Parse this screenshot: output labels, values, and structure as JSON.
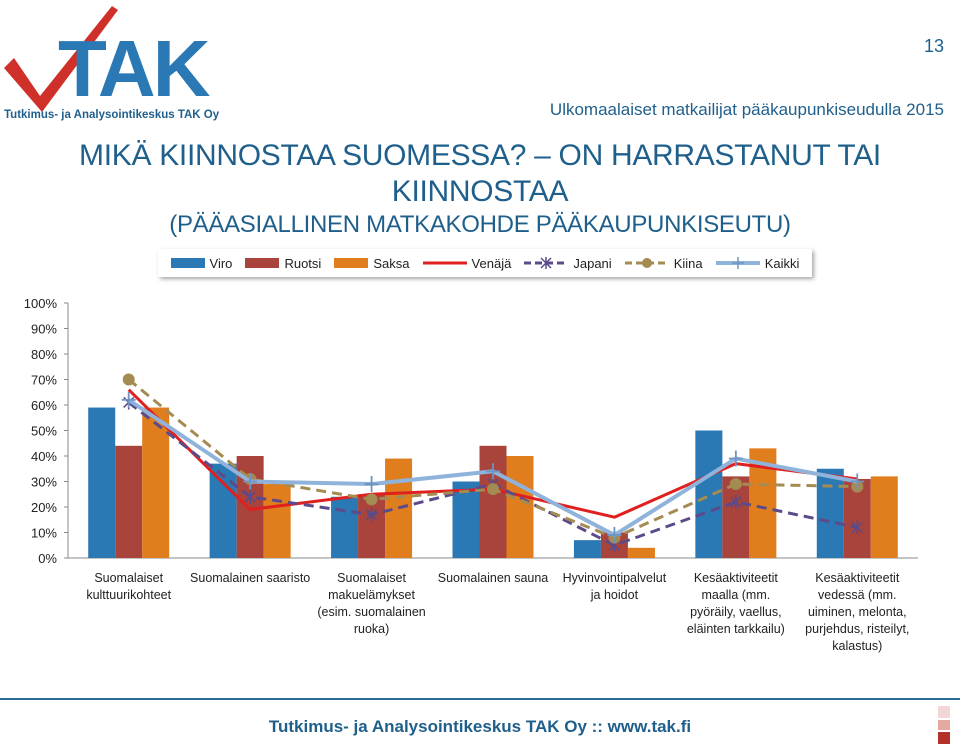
{
  "header": {
    "logo_text": "TAK",
    "logo_subtitle": "Tutkimus- ja Analysointikeskus TAK Oy",
    "page_number": "13",
    "caption": "Ulkomaalaiset matkailijat pääkaupunkiseudulla 2015"
  },
  "title": {
    "line1": "MIKÄ KIINNOSTAA SUOMESSA? – ON HARRASTANUT TAI KIINNOSTAA",
    "line2": "(PÄÄASIALLINEN MATKAKOHDE PÄÄKAUPUNKISEUTU)"
  },
  "footer": {
    "text": "Tutkimus- ja Analysointikeskus TAK Oy  ::  www.tak.fi"
  },
  "colors": {
    "brand": "#1f5f8b",
    "Viro": "#2a78b4",
    "Ruotsi": "#a8443b",
    "Saksa": "#e07d1d",
    "Venäjä": "#e0201e",
    "Japani": "#5b4b8a",
    "Kiina": "#a48b52",
    "Kaikki": "#8fb3da"
  },
  "chart_data": {
    "type": "bar",
    "categories": [
      [
        "Suomalaiset",
        "kulttuurikohteet"
      ],
      [
        "Suomalainen saaristo"
      ],
      [
        "Suomalaiset",
        "makuelämykset",
        "(esim. suomalainen",
        "ruoka)"
      ],
      [
        "Suomalainen sauna"
      ],
      [
        "Hyvinvointipalvelut",
        "ja hoidot"
      ],
      [
        "Kesäaktiviteetit",
        "maalla (mm.",
        "pyöräily, vaellus,",
        "eläinten tarkkailu)"
      ],
      [
        "Kesäaktiviteetit",
        "vedessä (mm.",
        "uiminen, melonta,",
        "purjehdus, risteilyt,",
        "kalastus)"
      ]
    ],
    "bar_series": [
      {
        "name": "Viro",
        "values": [
          59,
          37,
          24,
          30,
          7,
          50,
          35
        ]
      },
      {
        "name": "Ruotsi",
        "values": [
          44,
          40,
          25,
          44,
          10,
          32,
          31
        ]
      },
      {
        "name": "Saksa",
        "values": [
          59,
          29,
          39,
          40,
          4,
          43,
          32
        ]
      }
    ],
    "line_series": [
      {
        "name": "Venäjä",
        "style": "solid",
        "marker": "none",
        "values": [
          66,
          19,
          25,
          27,
          16,
          37,
          31
        ]
      },
      {
        "name": "Japani",
        "style": "dashed",
        "marker": "star",
        "values": [
          61,
          24,
          17,
          29,
          5,
          22,
          12
        ]
      },
      {
        "name": "Kiina",
        "style": "dashed",
        "marker": "circle",
        "values": [
          70,
          31,
          23,
          27,
          8,
          29,
          28
        ]
      },
      {
        "name": "Kaikki",
        "style": "solid",
        "marker": "plus",
        "values": [
          62,
          30,
          29,
          34,
          9,
          39,
          30
        ]
      }
    ],
    "y_ticks": [
      "0%",
      "10%",
      "20%",
      "30%",
      "40%",
      "50%",
      "60%",
      "70%",
      "80%",
      "90%",
      "100%"
    ],
    "ylim": [
      0,
      100
    ],
    "grid": false,
    "legend_position": "top"
  }
}
